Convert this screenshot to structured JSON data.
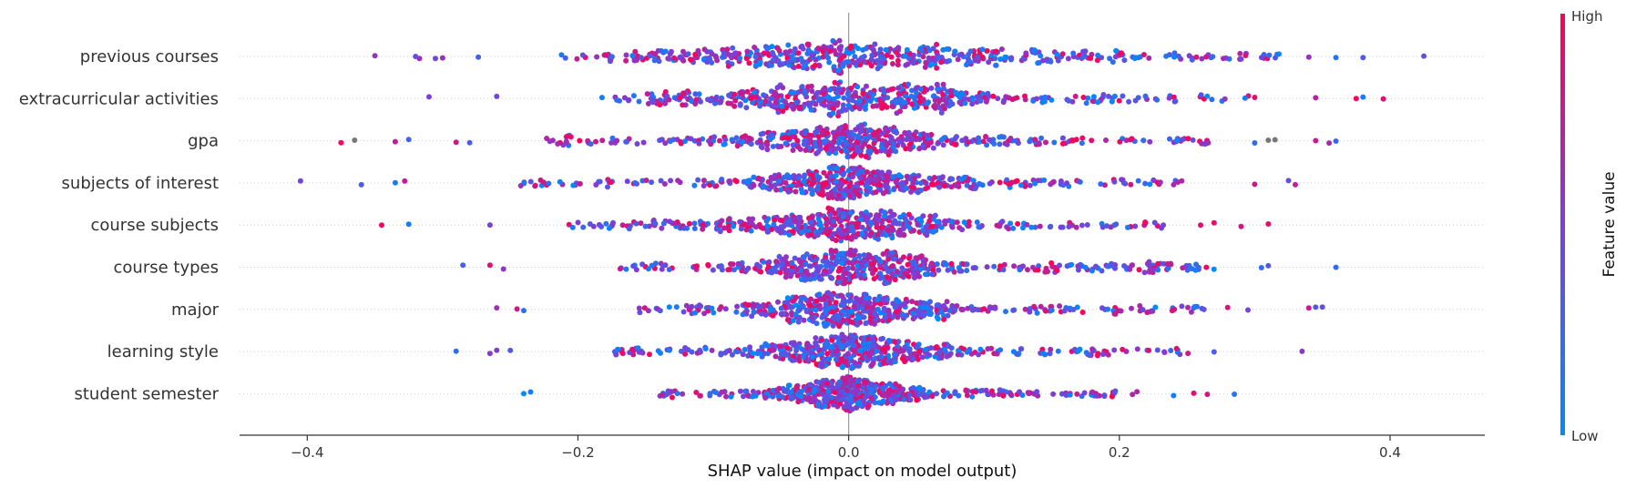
{
  "chart_data": {
    "type": "scatter",
    "subtype": "shap-beeswarm",
    "title": "",
    "xlabel": "SHAP value (impact on model output)",
    "xlim": [
      -0.45,
      0.47
    ],
    "xticks": [
      -0.4,
      -0.2,
      0.0,
      0.2,
      0.4
    ],
    "xtick_labels": [
      "−0.4",
      "−0.2",
      "0.0",
      "0.2",
      "0.4"
    ],
    "zero_line": true,
    "features": [
      {
        "name": "previous courses",
        "min": -0.35,
        "max": 0.425,
        "core": 0.18,
        "outliers": [
          -0.35,
          -0.32,
          -0.3,
          0.34,
          0.36,
          0.38,
          0.425
        ]
      },
      {
        "name": "extracurricular activities",
        "min": -0.31,
        "max": 0.395,
        "core": 0.15,
        "outliers": [
          -0.31,
          -0.26,
          0.3,
          0.345,
          0.375,
          0.38,
          0.395
        ]
      },
      {
        "name": "gpa",
        "min": -0.375,
        "max": 0.36,
        "core": 0.1,
        "outliers": [
          -0.375,
          -0.365,
          -0.335,
          -0.325,
          -0.29,
          -0.28,
          0.3,
          0.31,
          0.315,
          0.345,
          0.355,
          0.36
        ]
      },
      {
        "name": "subjects of interest",
        "min": -0.405,
        "max": 0.33,
        "core": 0.1,
        "outliers": [
          -0.405,
          -0.36,
          -0.335,
          -0.328,
          0.3,
          0.325,
          0.33
        ]
      },
      {
        "name": "course subjects",
        "min": -0.345,
        "max": 0.31,
        "core": 0.1,
        "outliers": [
          -0.345,
          -0.325,
          -0.265,
          0.26,
          0.27,
          0.29,
          0.31
        ]
      },
      {
        "name": "course types",
        "min": -0.285,
        "max": 0.36,
        "core": 0.09,
        "outliers": [
          -0.285,
          -0.265,
          -0.255,
          0.305,
          0.31,
          0.36
        ]
      },
      {
        "name": "major",
        "min": -0.26,
        "max": 0.35,
        "core": 0.09,
        "outliers": [
          -0.26,
          -0.245,
          -0.24,
          0.28,
          0.295,
          0.34,
          0.345,
          0.35
        ]
      },
      {
        "name": "learning style",
        "min": -0.29,
        "max": 0.335,
        "core": 0.08,
        "outliers": [
          -0.29,
          -0.265,
          -0.26,
          -0.25,
          0.27,
          0.335
        ]
      },
      {
        "name": "student semester",
        "min": -0.24,
        "max": 0.285,
        "core": 0.07,
        "outliers": [
          -0.24,
          -0.235,
          0.24,
          0.255,
          0.265,
          0.285
        ]
      }
    ],
    "colorbar": {
      "label": "Feature value",
      "high_label": "High",
      "low_label": "Low",
      "high_color": "#ff0052",
      "low_color": "#008bfb",
      "mid_color": "#7b3fd9",
      "missing_color": "#777777"
    }
  }
}
